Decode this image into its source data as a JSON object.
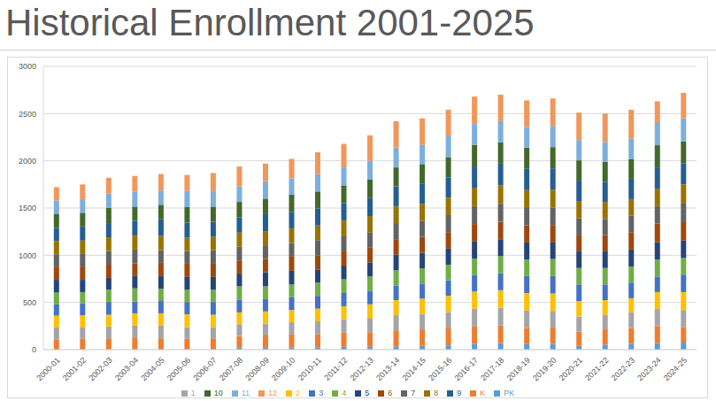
{
  "chart_data": {
    "type": "bar",
    "title": "Historical Enrollment 2001-2025",
    "stacked": true,
    "grid": true,
    "legend": "bottom",
    "categories": [
      "2000-01",
      "2001-02",
      "2002-03",
      "2003-04",
      "2004-05",
      "2005-06",
      "2006-07",
      "2007-08",
      "2008-09",
      "2009-10",
      "2010-11",
      "2011-12",
      "2012-13",
      "2013-14",
      "2014-15",
      "2015-16",
      "2016-17",
      "2017-18",
      "2018-19",
      "2019-20",
      "2020-21",
      "2021-22",
      "2022-23",
      "2023-24",
      "2024-25"
    ],
    "ylim": [
      0,
      3000
    ],
    "yticks": [
      0,
      500,
      1000,
      1500,
      2000,
      2500,
      3000
    ],
    "series": [
      {
        "name": "PK",
        "color": "#5b9bd5",
        "values": [
          0,
          0,
          0,
          0,
          0,
          0,
          0,
          20,
          20,
          25,
          25,
          30,
          30,
          35,
          40,
          45,
          60,
          70,
          60,
          60,
          40,
          50,
          60,
          70,
          75
        ]
      },
      {
        "name": "K",
        "color": "#ed7d31",
        "values": [
          110,
          115,
          120,
          130,
          120,
          115,
          120,
          125,
          130,
          135,
          140,
          150,
          155,
          170,
          175,
          180,
          190,
          185,
          170,
          175,
          150,
          165,
          170,
          180,
          165
        ]
      },
      {
        "name": "1",
        "color": "#a5a5a5",
        "values": [
          125,
          120,
          125,
          125,
          135,
          125,
          120,
          125,
          125,
          130,
          135,
          140,
          150,
          160,
          165,
          175,
          185,
          190,
          185,
          175,
          160,
          150,
          165,
          180,
          180
        ]
      },
      {
        "name": "2",
        "color": "#ffc000",
        "values": [
          125,
          130,
          125,
          130,
          130,
          135,
          130,
          125,
          130,
          130,
          135,
          140,
          145,
          160,
          160,
          170,
          180,
          185,
          185,
          185,
          165,
          160,
          150,
          180,
          190
        ]
      },
      {
        "name": "3",
        "color": "#4472c4",
        "values": [
          120,
          125,
          135,
          125,
          130,
          130,
          135,
          135,
          130,
          135,
          135,
          140,
          145,
          155,
          160,
          165,
          175,
          180,
          180,
          185,
          175,
          165,
          165,
          165,
          185
        ]
      },
      {
        "name": "4",
        "color": "#70ad47",
        "values": [
          125,
          120,
          130,
          140,
          130,
          130,
          130,
          140,
          140,
          135,
          140,
          145,
          150,
          160,
          160,
          165,
          175,
          180,
          175,
          180,
          175,
          175,
          170,
          180,
          175
        ]
      },
      {
        "name": "5",
        "color": "#264478",
        "values": [
          135,
          130,
          125,
          135,
          140,
          135,
          135,
          135,
          145,
          145,
          140,
          145,
          150,
          165,
          165,
          170,
          180,
          180,
          180,
          175,
          175,
          175,
          180,
          185,
          185
        ]
      },
      {
        "name": "6",
        "color": "#9e480e",
        "values": [
          140,
          140,
          140,
          130,
          135,
          140,
          140,
          140,
          140,
          150,
          150,
          150,
          155,
          165,
          170,
          175,
          185,
          185,
          180,
          185,
          170,
          175,
          180,
          195,
          195
        ]
      },
      {
        "name": "7",
        "color": "#636363",
        "values": [
          130,
          140,
          145,
          145,
          135,
          135,
          145,
          145,
          145,
          145,
          160,
          160,
          160,
          170,
          170,
          180,
          190,
          190,
          185,
          185,
          180,
          170,
          180,
          185,
          205
        ]
      },
      {
        "name": "8",
        "color": "#997300",
        "values": [
          140,
          135,
          145,
          150,
          150,
          140,
          140,
          150,
          150,
          155,
          155,
          170,
          175,
          180,
          180,
          185,
          195,
          195,
          190,
          190,
          185,
          180,
          175,
          185,
          195
        ]
      },
      {
        "name": "9",
        "color": "#255e91",
        "values": [
          140,
          150,
          150,
          155,
          175,
          160,
          160,
          160,
          180,
          175,
          180,
          180,
          190,
          210,
          210,
          215,
          225,
          230,
          225,
          225,
          215,
          210,
          215,
          225,
          225
        ]
      },
      {
        "name": "10",
        "color": "#43682b",
        "values": [
          150,
          145,
          160,
          150,
          155,
          165,
          160,
          165,
          165,
          180,
          180,
          190,
          195,
          200,
          210,
          215,
          230,
          225,
          225,
          225,
          215,
          215,
          210,
          235,
          230
        ]
      },
      {
        "name": "11",
        "color": "#7cafdd",
        "values": [
          140,
          145,
          155,
          160,
          150,
          170,
          170,
          165,
          185,
          175,
          185,
          190,
          200,
          210,
          205,
          220,
          220,
          225,
          220,
          225,
          215,
          210,
          215,
          235,
          245
        ]
      },
      {
        "name": "12",
        "color": "#f1975a",
        "values": [
          140,
          155,
          165,
          165,
          175,
          170,
          185,
          210,
          185,
          205,
          230,
          250,
          270,
          280,
          280,
          280,
          290,
          280,
          280,
          290,
          290,
          300,
          305,
          230,
          270
        ]
      }
    ]
  }
}
